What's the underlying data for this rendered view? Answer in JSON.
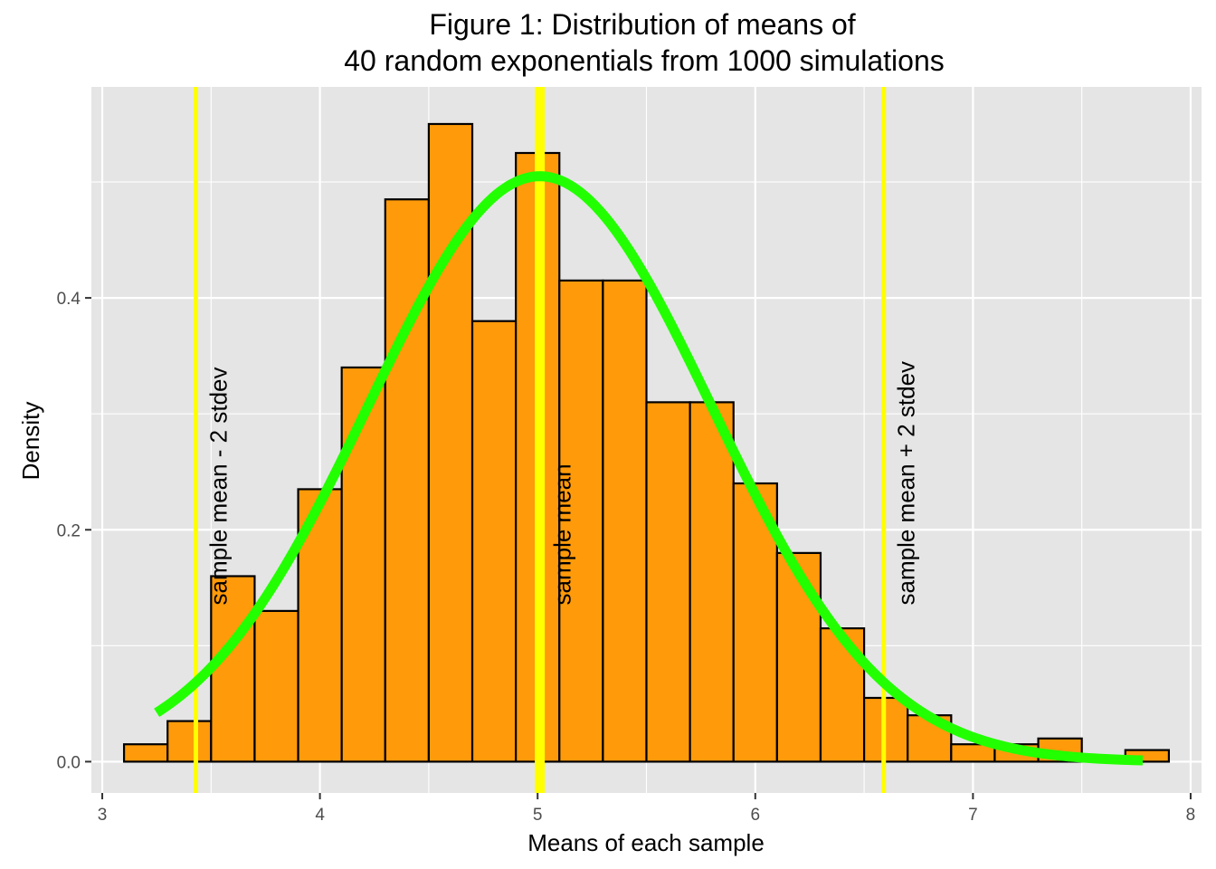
{
  "chart_data": {
    "type": "bar",
    "title": [
      "Figure 1: Distribution of means of",
      "40 random exponentials from 1000 simulations"
    ],
    "xlabel": "Means of each sample",
    "ylabel": "Density",
    "xlim": [
      2.95,
      8.05
    ],
    "ylim": [
      -0.027,
      0.582
    ],
    "x_ticks": [
      3,
      4,
      5,
      6,
      7,
      8
    ],
    "y_ticks": [
      0.0,
      0.2,
      0.4
    ],
    "y_tick_labels": [
      "0.0",
      "0.2",
      "0.4"
    ],
    "grid": true,
    "bin_width": 0.2,
    "histogram": [
      {
        "x0": 3.1,
        "x1": 3.3,
        "density": 0.015
      },
      {
        "x0": 3.3,
        "x1": 3.5,
        "density": 0.035
      },
      {
        "x0": 3.5,
        "x1": 3.7,
        "density": 0.16
      },
      {
        "x0": 3.7,
        "x1": 3.9,
        "density": 0.13
      },
      {
        "x0": 3.9,
        "x1": 4.1,
        "density": 0.235
      },
      {
        "x0": 4.1,
        "x1": 4.3,
        "density": 0.34
      },
      {
        "x0": 4.3,
        "x1": 4.5,
        "density": 0.485
      },
      {
        "x0": 4.5,
        "x1": 4.7,
        "density": 0.55
      },
      {
        "x0": 4.7,
        "x1": 4.9,
        "density": 0.38
      },
      {
        "x0": 4.9,
        "x1": 5.1,
        "density": 0.525
      },
      {
        "x0": 5.1,
        "x1": 5.3,
        "density": 0.415
      },
      {
        "x0": 5.3,
        "x1": 5.5,
        "density": 0.415
      },
      {
        "x0": 5.5,
        "x1": 5.7,
        "density": 0.31
      },
      {
        "x0": 5.7,
        "x1": 5.9,
        "density": 0.31
      },
      {
        "x0": 5.9,
        "x1": 6.1,
        "density": 0.24
      },
      {
        "x0": 6.1,
        "x1": 6.3,
        "density": 0.18
      },
      {
        "x0": 6.3,
        "x1": 6.5,
        "density": 0.115
      },
      {
        "x0": 6.5,
        "x1": 6.7,
        "density": 0.055
      },
      {
        "x0": 6.7,
        "x1": 6.9,
        "density": 0.04
      },
      {
        "x0": 6.9,
        "x1": 7.1,
        "density": 0.015
      },
      {
        "x0": 7.1,
        "x1": 7.3,
        "density": 0.015
      },
      {
        "x0": 7.3,
        "x1": 7.5,
        "density": 0.02
      },
      {
        "x0": 7.5,
        "x1": 7.7,
        "density": 0.0
      },
      {
        "x0": 7.7,
        "x1": 7.9,
        "density": 0.01
      }
    ],
    "normal_curve": {
      "mean": 5.01,
      "sd": 0.79,
      "x_range": [
        3.25,
        7.78
      ],
      "color": "#22ff00"
    },
    "vlines": [
      {
        "x": 3.43,
        "label": "sample mean - 2 stdev",
        "color": "#ffff00"
      },
      {
        "x": 5.01,
        "label": "sample mean",
        "color": "#ffff00"
      },
      {
        "x": 6.59,
        "label": "sample mean + 2 stdev",
        "color": "#ffff00"
      }
    ],
    "label_y": 0.135,
    "colors": {
      "bar_fill": "#ff9a0a",
      "bar_stroke": "#000000",
      "panel_bg": "#e5e5e5",
      "grid": "#ffffff"
    }
  }
}
